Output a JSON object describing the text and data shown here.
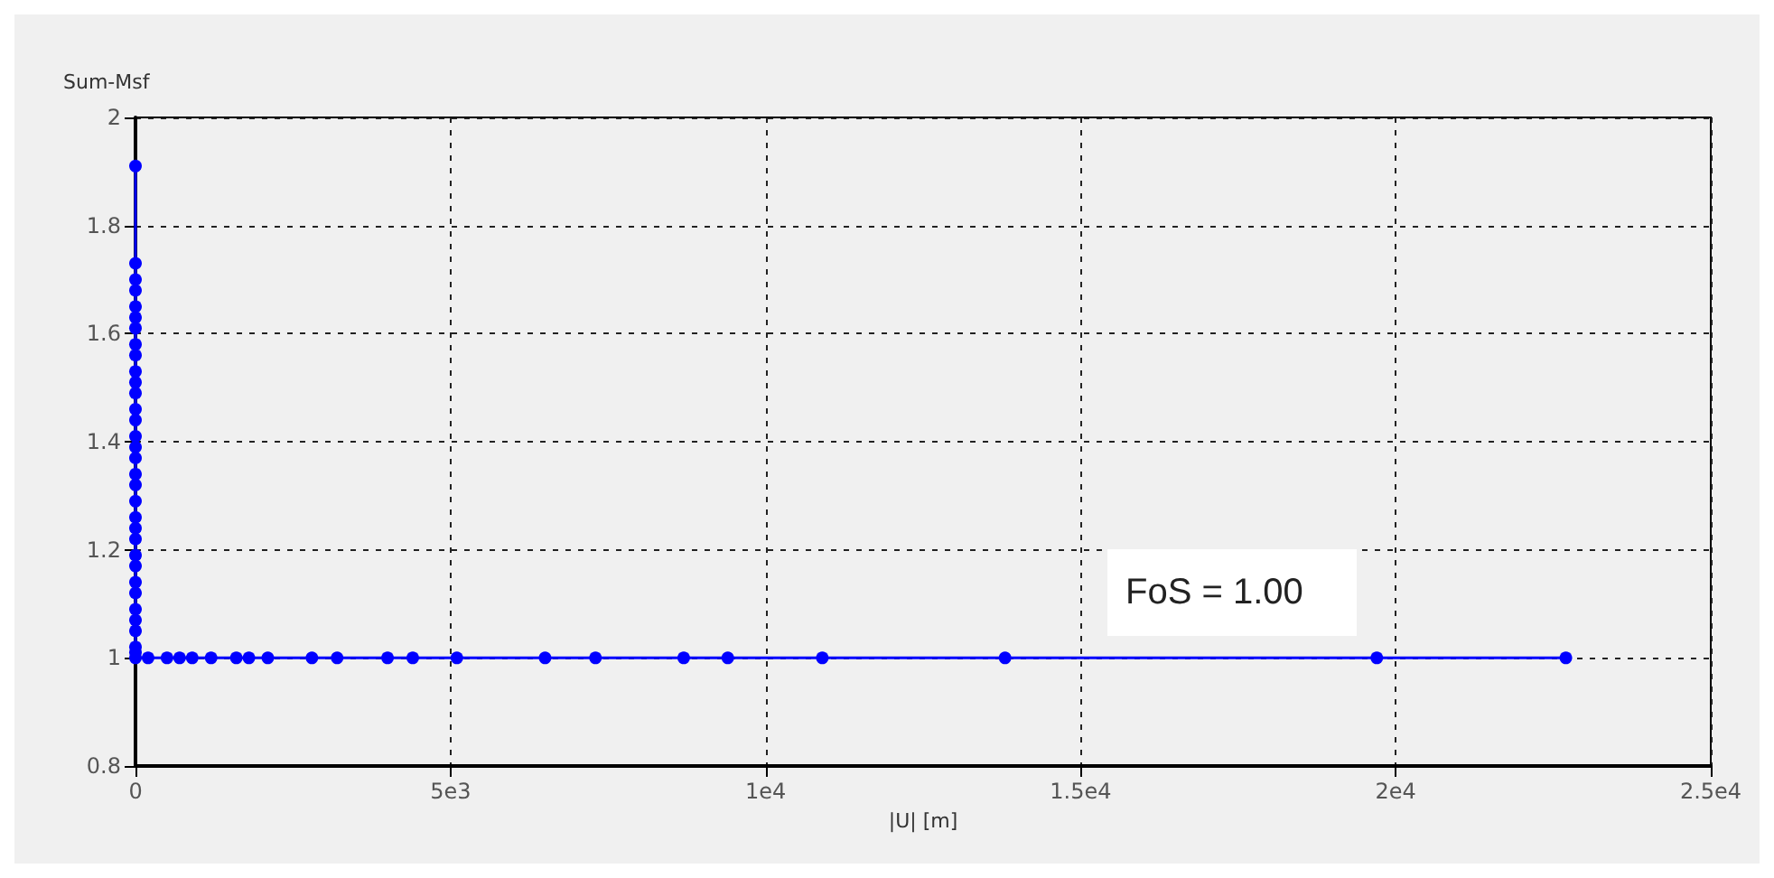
{
  "chart_data": {
    "type": "line",
    "xlabel": "|U| [m]",
    "ylabel": "Sum-Msf",
    "x": [
      0,
      0,
      0,
      0,
      0,
      0,
      0,
      0,
      0,
      0,
      0,
      0,
      0,
      0,
      0,
      0,
      0,
      0,
      0,
      0,
      0,
      0,
      0,
      0,
      0,
      0,
      0,
      0,
      0,
      0,
      0,
      0,
      0,
      200,
      500,
      700,
      900,
      1200,
      1600,
      1800,
      2100,
      2800,
      3200,
      4000,
      4400,
      5100,
      6500,
      7300,
      8700,
      9400,
      10900,
      13800,
      19700,
      22700
    ],
    "series": [
      {
        "color": "#0000ff",
        "values": [
          1.91,
          1.73,
          1.7,
          1.68,
          1.65,
          1.63,
          1.61,
          1.58,
          1.56,
          1.53,
          1.51,
          1.49,
          1.46,
          1.44,
          1.41,
          1.39,
          1.37,
          1.34,
          1.32,
          1.29,
          1.26,
          1.24,
          1.22,
          1.19,
          1.17,
          1.14,
          1.12,
          1.09,
          1.07,
          1.05,
          1.02,
          1.01,
          1.0,
          1.0,
          1.0,
          1.0,
          1.0,
          1.0,
          1.0,
          1.0,
          1.0,
          1.0,
          1.0,
          1.0,
          1.0,
          1.0,
          1.0,
          1.0,
          1.0,
          1.0,
          1.0,
          1.0,
          1.0,
          1.0
        ]
      }
    ],
    "xlim": [
      0,
      25000
    ],
    "xticks": [
      0,
      {
        "value": 5000,
        "label": "5e3"
      },
      {
        "value": 10000,
        "label": "1e4"
      },
      {
        "value": 15000,
        "label": "1.5e4"
      },
      {
        "value": 20000,
        "label": "2e4"
      },
      {
        "value": 25000,
        "label": "2.5e4"
      }
    ],
    "ylim": [
      0.8,
      2
    ],
    "yticks": [
      0.8,
      1,
      1.2,
      1.4,
      1.6,
      1.8,
      2
    ],
    "grid": true,
    "marker": "circle",
    "line_style": "solid",
    "annotations": [
      "FoS = 1.00"
    ]
  }
}
